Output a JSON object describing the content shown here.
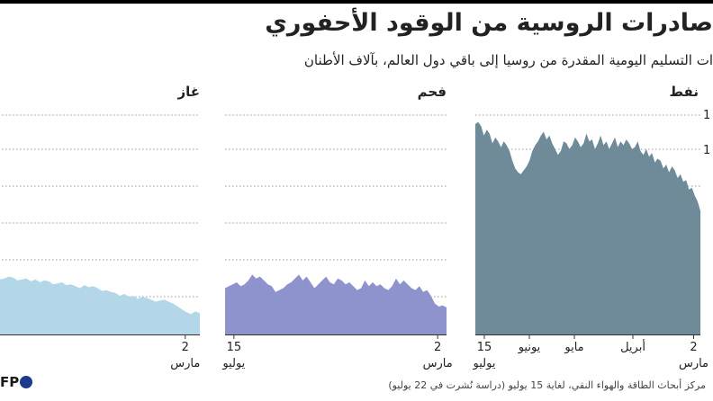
{
  "header": {
    "title": "صادرات الروسية من الوقود الأحفوري",
    "subtitle": "ات التسليم اليومية المقدرة من روسيا إلى باقي دول العالم، بآلاف الأطنان"
  },
  "footer": {
    "source": "مركز أبحاث الطاقة والهواء النقي، لغاية 15 يوليو (دراسة نُشرت في 22 يوليو)",
    "logo": "FP"
  },
  "colors": {
    "oil": "#6f8a99",
    "coal": "#8f93cd",
    "gas": "#b3d6e8",
    "grid": "#9a9a9a"
  },
  "chart_data": [
    {
      "type": "area",
      "title": "نفط",
      "x_labels": [
        {
          "line1": "15",
          "line2": "يوليو",
          "pos": 0.04
        },
        {
          "line1": "يونيو",
          "line2": "",
          "pos": 0.24
        },
        {
          "line1": "مايو",
          "line2": "",
          "pos": 0.44
        },
        {
          "line1": "أبريل",
          "line2": "",
          "pos": 0.7
        },
        {
          "line1": "2",
          "line2": "مارس",
          "pos": 0.97
        }
      ],
      "y_tick_labels": [
        "1",
        "1"
      ],
      "values": [
        640,
        690,
        720,
        760,
        750,
        800,
        790,
        830,
        810,
        850,
        870,
        840,
        880,
        860,
        900,
        910,
        890,
        940,
        920,
        960,
        930,
        950,
        1000,
        970,
        960,
        990,
        1010,
        980,
        1000,
        970,
        1020,
        990,
        960,
        1000,
        980,
        1030,
        990,
        960,
        1010,
        1000,
        1040,
        990,
        970,
        1000,
        1020,
        980,
        960,
        990,
        1000,
        950,
        930,
        960,
        990,
        1030,
        1010,
        1050,
        1030,
        1000,
        980,
        950,
        900,
        870,
        850,
        830,
        840,
        860,
        900,
        950,
        980,
        1000,
        970,
        1000,
        1020,
        990,
        1040,
        1060,
        1030,
        1080,
        1100,
        1090
      ]
    },
    {
      "type": "area",
      "title": "فحم",
      "x_labels": [
        {
          "line1": "15",
          "line2": "يوليو",
          "pos": 0.04
        },
        {
          "line1": "2",
          "line2": "مارس",
          "pos": 0.96
        }
      ],
      "values": [
        140,
        150,
        145,
        160,
        200,
        230,
        220,
        250,
        230,
        240,
        260,
        280,
        260,
        290,
        250,
        230,
        240,
        260,
        250,
        270,
        250,
        280,
        240,
        230,
        250,
        270,
        260,
        280,
        290,
        260,
        270,
        300,
        280,
        260,
        240,
        270,
        300,
        280,
        310,
        290,
        270,
        260,
        240,
        230,
        220,
        250,
        260,
        280,
        300,
        290,
        310,
        280,
        260,
        250,
        270,
        260,
        250,
        240
      ]
    },
    {
      "type": "area",
      "title": "غاز",
      "x_labels": [
        {
          "line1": "2",
          "line2": "مارس",
          "pos": 0.93
        }
      ],
      "values": [
        110,
        120,
        105,
        115,
        130,
        145,
        160,
        170,
        180,
        175,
        170,
        180,
        190,
        195,
        185,
        200,
        195,
        210,
        200,
        215,
        220,
        230,
        225,
        240,
        250,
        245,
        255,
        240,
        250,
        260,
        255,
        270,
        265,
        260,
        275,
        280,
        270,
        285,
        275,
        290,
        285,
        280,
        295,
        300,
        290,
        285,
        295,
        290
      ]
    }
  ]
}
